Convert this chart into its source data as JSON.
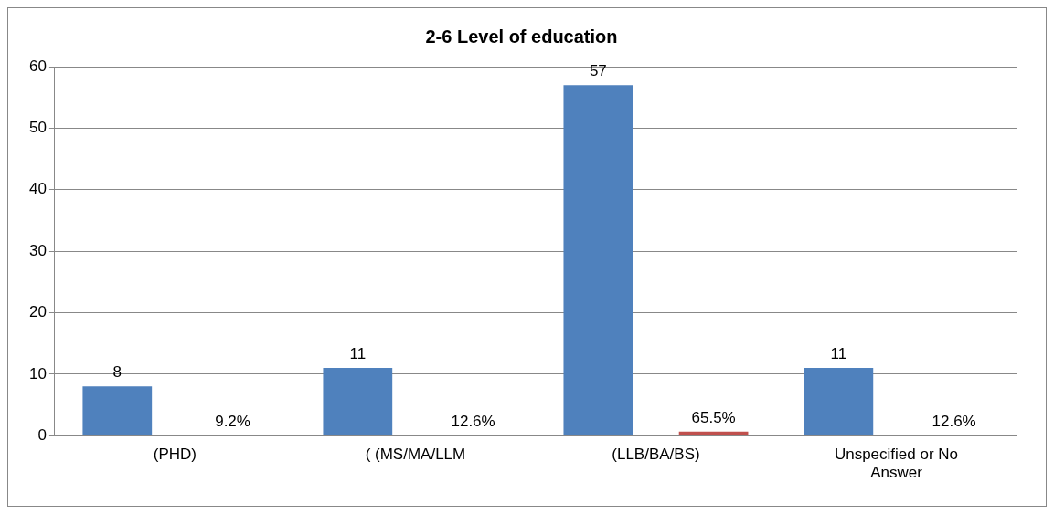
{
  "chart_data": {
    "type": "bar",
    "title": "2-6 Level of education",
    "categories": [
      "(PHD)",
      "( (MS/MA/LLM",
      "(LLB/BA/BS)",
      "Unspecified or No Answer"
    ],
    "series": [
      {
        "color": "#4f81bd",
        "values": [
          8,
          11,
          57,
          11
        ],
        "value_labels": [
          "8",
          "11",
          "57",
          "11"
        ]
      },
      {
        "color": "#c0504d",
        "values": [
          0.092,
          0.126,
          0.655,
          0.126
        ],
        "value_labels": [
          "9.2%",
          "12.6%",
          "65.5%",
          "12.6%"
        ]
      }
    ],
    "ylim": [
      0,
      60
    ],
    "yticks": [
      0,
      10,
      20,
      30,
      40,
      50,
      60
    ],
    "grid": "y",
    "legend": false
  }
}
